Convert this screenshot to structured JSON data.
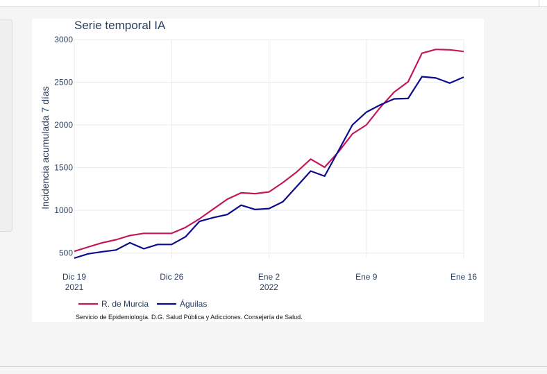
{
  "chart_data": {
    "type": "line",
    "title": "Serie temporal IA",
    "ylabel": "Incidencia acumulada 7 días",
    "xlabel": "",
    "x_range": [
      "2021-12-19",
      "2022-01-16"
    ],
    "ylim": [
      440,
      3000
    ],
    "y_ticks": [
      500,
      1000,
      1500,
      2000,
      2500,
      3000
    ],
    "x_ticks": [
      {
        "date": "2021-12-19",
        "label": "Dic 19",
        "sublabel": "2021"
      },
      {
        "date": "2021-12-26",
        "label": "Dic 26",
        "sublabel": ""
      },
      {
        "date": "2022-01-02",
        "label": "Ene 2",
        "sublabel": "2022"
      },
      {
        "date": "2022-01-09",
        "label": "Ene 9",
        "sublabel": ""
      },
      {
        "date": "2022-01-16",
        "label": "Ene 16",
        "sublabel": ""
      }
    ],
    "grid": true,
    "legend_position": "bottom-left",
    "series": [
      {
        "name": "R. de Murcia",
        "color": "#c2185b",
        "points": [
          [
            "2021-12-19",
            520
          ],
          [
            "2021-12-20",
            570
          ],
          [
            "2021-12-21",
            620
          ],
          [
            "2021-12-22",
            655
          ],
          [
            "2021-12-23",
            705
          ],
          [
            "2021-12-24",
            730
          ],
          [
            "2021-12-25",
            730
          ],
          [
            "2021-12-26",
            730
          ],
          [
            "2021-12-27",
            800
          ],
          [
            "2021-12-28",
            900
          ],
          [
            "2021-12-29",
            1015
          ],
          [
            "2021-12-30",
            1130
          ],
          [
            "2021-12-31",
            1205
          ],
          [
            "2022-01-01",
            1195
          ],
          [
            "2022-01-02",
            1215
          ],
          [
            "2022-01-03",
            1325
          ],
          [
            "2022-01-04",
            1450
          ],
          [
            "2022-01-05",
            1600
          ],
          [
            "2022-01-06",
            1505
          ],
          [
            "2022-01-07",
            1685
          ],
          [
            "2022-01-08",
            1895
          ],
          [
            "2022-01-09",
            2000
          ],
          [
            "2022-01-10",
            2205
          ],
          [
            "2022-01-11",
            2385
          ],
          [
            "2022-01-12",
            2505
          ],
          [
            "2022-01-13",
            2840
          ],
          [
            "2022-01-14",
            2885
          ],
          [
            "2022-01-15",
            2880
          ],
          [
            "2022-01-16",
            2860
          ]
        ]
      },
      {
        "name": "Águilas",
        "color": "#0d0a8c",
        "points": [
          [
            "2021-12-19",
            440
          ],
          [
            "2021-12-20",
            490
          ],
          [
            "2021-12-21",
            515
          ],
          [
            "2021-12-22",
            535
          ],
          [
            "2021-12-23",
            620
          ],
          [
            "2021-12-24",
            550
          ],
          [
            "2021-12-25",
            600
          ],
          [
            "2021-12-26",
            600
          ],
          [
            "2021-12-27",
            690
          ],
          [
            "2021-12-28",
            870
          ],
          [
            "2021-12-29",
            915
          ],
          [
            "2021-12-30",
            950
          ],
          [
            "2021-12-31",
            1060
          ],
          [
            "2022-01-01",
            1010
          ],
          [
            "2022-01-02",
            1020
          ],
          [
            "2022-01-03",
            1100
          ],
          [
            "2022-01-04",
            1280
          ],
          [
            "2022-01-05",
            1460
          ],
          [
            "2022-01-06",
            1400
          ],
          [
            "2022-01-07",
            1700
          ],
          [
            "2022-01-08",
            2000
          ],
          [
            "2022-01-09",
            2150
          ],
          [
            "2022-01-10",
            2235
          ],
          [
            "2022-01-11",
            2305
          ],
          [
            "2022-01-12",
            2310
          ],
          [
            "2022-01-13",
            2565
          ],
          [
            "2022-01-14",
            2550
          ],
          [
            "2022-01-15",
            2490
          ],
          [
            "2022-01-16",
            2560
          ]
        ]
      }
    ],
    "source": "Servicio de Epidemiología. D.G. Salud Pública y Adicciones. Consejería de Salud."
  }
}
